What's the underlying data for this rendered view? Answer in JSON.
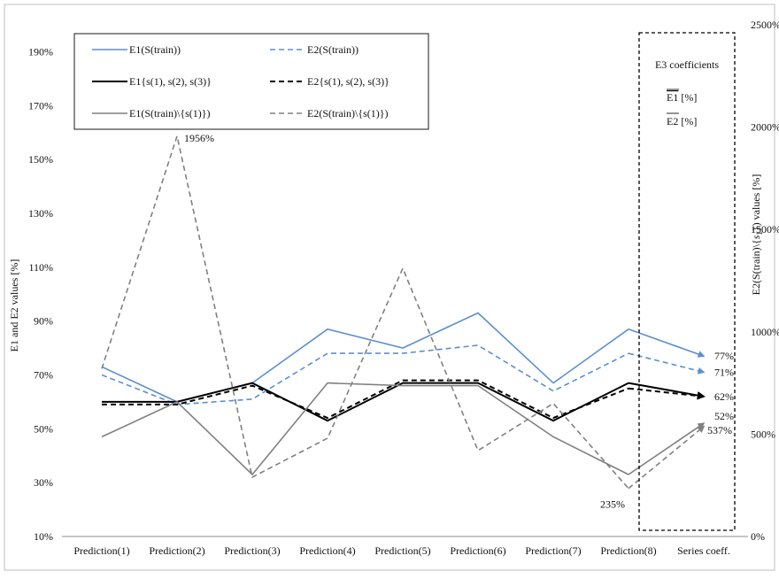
{
  "chart_data": {
    "type": "line",
    "categories": [
      "Prediction(1)",
      "Prediction(2)",
      "Prediction(3)",
      "Prediction(4)",
      "Prediction(5)",
      "Prediction(6)",
      "Prediction(7)",
      "Prediction(8)",
      "Series coeff."
    ],
    "ylabel_left": "E1 and E2 values [%]",
    "ylabel_right_parts": [
      "E2(S(train)\\{",
      "s",
      "1",
      "}) values [%]"
    ],
    "y_left": {
      "min": 10,
      "max": 200,
      "ticks": [
        10,
        30,
        50,
        70,
        90,
        110,
        130,
        150,
        170,
        190
      ],
      "tick_labels": [
        "10%",
        "30%",
        "50%",
        "70%",
        "90%",
        "110%",
        "130%",
        "150%",
        "170%",
        "190%"
      ]
    },
    "y_right": {
      "min": 0,
      "max": 2500,
      "ticks": [
        0,
        500,
        1000,
        1500,
        2000,
        2500
      ],
      "tick_labels": [
        "0%",
        "500%",
        "1000%",
        "1500%",
        "2000%",
        "2500%"
      ]
    },
    "grid": false,
    "legend_position": "top-left",
    "series": [
      {
        "name": "E1(S(train))",
        "axis": "left",
        "color": "#5b8fd0",
        "dashed": false,
        "width": 1.6,
        "values": [
          73,
          60,
          67,
          87,
          80,
          93,
          67,
          87,
          77
        ]
      },
      {
        "name": "E2(S(train))",
        "axis": "left",
        "color": "#5b8fd0",
        "dashed": true,
        "width": 1.6,
        "values": [
          70,
          59,
          61,
          78,
          78,
          81,
          64,
          78,
          71
        ]
      },
      {
        "name": "E1{s(1), s(2), s(3)}",
        "axis": "left",
        "color": "#000000",
        "dashed": false,
        "width": 2.0,
        "values": [
          60,
          60,
          67,
          53,
          67,
          67,
          53,
          67,
          62
        ]
      },
      {
        "name": "E2{s(1), s(2), s(3)}",
        "axis": "left",
        "color": "#000000",
        "dashed": true,
        "width": 2.0,
        "values": [
          59,
          59,
          66,
          54,
          68,
          68,
          54,
          65,
          62
        ]
      },
      {
        "name": "E1(S(train)\\{s(1)})",
        "axis": "left",
        "color": "#808080",
        "dashed": false,
        "width": 1.6,
        "values": [
          47,
          60,
          33,
          67,
          66,
          66,
          47,
          33,
          52
        ]
      },
      {
        "name": "E2(S(train)\\{s(1)})",
        "axis": "right",
        "color": "#808080",
        "dashed": true,
        "width": 1.6,
        "values": [
          820,
          1956,
          290,
          480,
          1310,
          420,
          650,
          235,
          537
        ]
      }
    ],
    "annotations": [
      {
        "text": "1956%",
        "series": 5,
        "point": 1
      },
      {
        "text": "235%",
        "series": 5,
        "point": 7
      },
      {
        "text": "77%",
        "series": 0,
        "point": 8
      },
      {
        "text": "71%",
        "series": 1,
        "point": 8
      },
      {
        "text": "62%",
        "series": 2,
        "point": 8
      },
      {
        "text": "52%",
        "series": 4,
        "point": 8
      },
      {
        "text": "537%",
        "series": 5,
        "point": 8
      }
    ],
    "e3_box": {
      "title": "E3 coefficients",
      "lines": [
        {
          "bar": "E1",
          "suffix": " [%]"
        },
        {
          "bar": "E2",
          "suffix": " [%]"
        }
      ]
    }
  }
}
